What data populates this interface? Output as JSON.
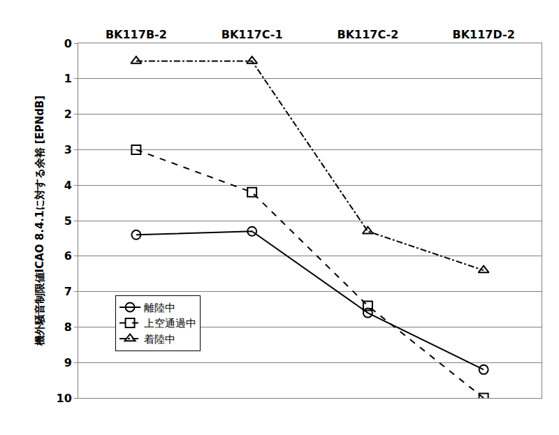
{
  "chart_data": {
    "type": "line",
    "y_label": "機外騒音制限値ICAO 8.4.1に対する余裕 [EPNdB]",
    "categories": [
      "BK117B-2",
      "BK117C-1",
      "BK117C-2",
      "BK117D-2"
    ],
    "series": [
      {
        "name": "離陸中",
        "color": "#000000",
        "marker": "circle",
        "line_style": "solid",
        "values": [
          5.4,
          5.3,
          7.6,
          9.2
        ]
      },
      {
        "name": "上空通過中",
        "color": "#000000",
        "marker": "square",
        "line_style": "dash",
        "values": [
          3.0,
          4.2,
          7.4,
          10.0
        ]
      },
      {
        "name": "着陸中",
        "color": "#000000",
        "marker": "triangle-up",
        "line_style": "dashdot",
        "values": [
          0.5,
          0.5,
          5.3,
          6.4
        ]
      }
    ],
    "ylim": [
      10,
      0
    ],
    "yticks": [
      0,
      1,
      2,
      3,
      4,
      5,
      6,
      7,
      8,
      9,
      10
    ],
    "grid": true,
    "legend": "lower left"
  }
}
